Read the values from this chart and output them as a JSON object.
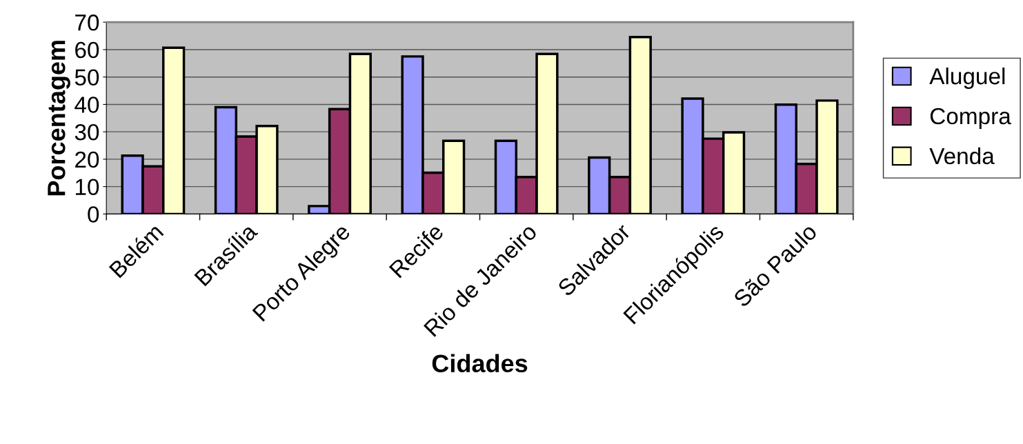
{
  "chart_data": {
    "type": "bar",
    "xlabel": "Cidades",
    "ylabel": "Porcentagem",
    "categories": [
      "Belém",
      "Brasília",
      "Porto Alegre",
      "Recife",
      "Rio de Janeiro",
      "Salvador",
      "Florianópolis",
      "São Paulo"
    ],
    "series": [
      {
        "name": "Aluguel",
        "color": "#9999ff",
        "values": [
          21.3,
          39.0,
          2.9,
          57.5,
          26.7,
          20.6,
          42.1,
          39.9
        ]
      },
      {
        "name": "Compra",
        "color": "#993366",
        "values": [
          17.4,
          28.3,
          38.3,
          15.1,
          13.5,
          13.5,
          27.5,
          18.3
        ]
      },
      {
        "name": "Venda",
        "color": "#ffffcc",
        "values": [
          60.7,
          32.1,
          58.4,
          26.7,
          58.4,
          64.6,
          29.8,
          41.4
        ]
      }
    ],
    "ylim": [
      0,
      70
    ],
    "yticks": [
      0,
      10,
      20,
      30,
      40,
      50,
      60,
      70
    ],
    "grid": "y",
    "legend": "right"
  }
}
